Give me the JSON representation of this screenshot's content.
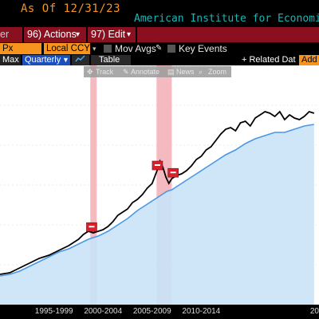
{
  "header": {
    "as_of_label": "As Of",
    "as_of_date": "12/31/23",
    "source": "American Institute for Economi."
  },
  "menubar": {
    "left_label": "er",
    "actions_label": "96) Actions",
    "edit_label": "97) Edit"
  },
  "toolbar": {
    "field_value": "Px",
    "currency_value": "Local CCY",
    "mov_avgs_label": "Mov Avgs",
    "key_events_label": "Key Events"
  },
  "controls": {
    "range_label": "Max",
    "frequency_value": "Quarterly",
    "table_label": "Table",
    "related_label": "+ Related Dat",
    "add_label": "Add"
  },
  "chart_tools": {
    "track": "Track",
    "annotate": "Annotate",
    "news": "News",
    "zoom": "Zoom"
  },
  "colors": {
    "accent_orange": "#f7941d",
    "menu_red": "#8a1020",
    "line_black": "#000000",
    "area_fill": "#c9e3f7",
    "area_line": "#4a97e6",
    "recession_band": "#f3b3b8",
    "source_cyan": "#19b5b5"
  },
  "chart_data": {
    "type": "line",
    "x_ticks": [
      "1995-1999",
      "2000-2004",
      "2005-2009",
      "2010-2014",
      "20"
    ],
    "recession_periods": [
      [
        2001.2,
        2001.85
      ],
      [
        2007.95,
        2009.5
      ]
    ],
    "event_markers": [
      2001.3,
      2008.0,
      2009.6
    ],
    "series": [
      {
        "style": "black-line",
        "x": [
          1992,
          1993,
          1994,
          1995,
          1996,
          1997,
          1998,
          1999,
          2000,
          2000.5,
          2001,
          2001.5,
          2002,
          2002.5,
          2003,
          2003.5,
          2004,
          2004.5,
          2005,
          2005.5,
          2006,
          2006.5,
          2007,
          2007.5,
          2008,
          2008.3,
          2008.6,
          2008.9,
          2009.2,
          2009.5,
          2010,
          2010.5,
          2011,
          2011.5,
          2012,
          2012.5,
          2013,
          2013.5,
          2014,
          2014.5,
          2015,
          2015.5,
          2016,
          2016.5,
          2017,
          2017.5,
          2018,
          2018.5,
          2019,
          2019.5,
          2020,
          2020.5,
          2021,
          2021.5,
          2022,
          2022.5,
          2023,
          2023.5,
          2024
        ],
        "y": [
          19,
          20,
          23,
          26,
          29,
          31,
          34,
          37,
          41,
          44,
          46,
          45,
          46,
          47,
          49,
          52,
          56,
          58,
          60,
          64,
          66,
          69,
          73,
          76,
          84,
          90,
          86,
          80,
          76,
          79,
          81,
          82,
          84,
          87,
          91,
          93,
          97,
          99,
          103,
          107,
          110,
          111,
          109,
          114,
          115,
          112,
          117,
          119,
          121,
          120,
          118,
          121,
          116,
          119,
          117,
          116,
          118,
          121,
          120
        ]
      },
      {
        "style": "blue-area",
        "x": [
          1992,
          1993,
          1994,
          1995,
          1996,
          1997,
          1998,
          1999,
          2000,
          2001,
          2002,
          2003,
          2004,
          2005,
          2006,
          2007,
          2008,
          2008.5,
          2009,
          2009.5,
          2010,
          2011,
          2012,
          2013,
          2014,
          2015,
          2016,
          2017,
          2018,
          2019,
          2020,
          2021,
          2022,
          2023,
          2024
        ],
        "y": [
          18,
          19,
          21,
          24,
          27,
          30,
          33,
          35,
          38,
          41,
          43,
          46,
          50,
          54,
          59,
          63,
          67,
          69,
          71,
          72,
          74,
          78,
          82,
          86,
          90,
          94,
          97,
          101,
          104,
          106,
          108,
          108,
          110,
          112,
          113
        ]
      }
    ],
    "xlim": [
      1992,
      2024.5
    ],
    "ylim": [
      0,
      150
    ]
  }
}
